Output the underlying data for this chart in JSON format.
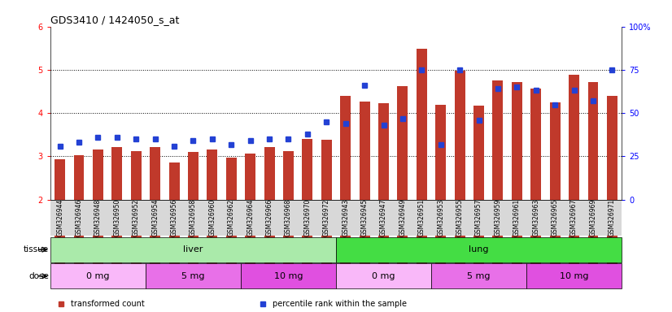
{
  "title": "GDS3410 / 1424050_s_at",
  "samples": [
    "GSM326944",
    "GSM326946",
    "GSM326948",
    "GSM326950",
    "GSM326952",
    "GSM326954",
    "GSM326956",
    "GSM326958",
    "GSM326960",
    "GSM326962",
    "GSM326964",
    "GSM326966",
    "GSM326968",
    "GSM326970",
    "GSM326972",
    "GSM326943",
    "GSM326945",
    "GSM326947",
    "GSM326949",
    "GSM326951",
    "GSM326953",
    "GSM326955",
    "GSM326957",
    "GSM326959",
    "GSM326961",
    "GSM326963",
    "GSM326965",
    "GSM326967",
    "GSM326969",
    "GSM326971"
  ],
  "transformed_count": [
    2.93,
    3.02,
    3.16,
    3.22,
    3.12,
    3.22,
    2.85,
    3.1,
    3.15,
    2.97,
    3.07,
    3.22,
    3.13,
    3.4,
    3.38,
    4.4,
    4.27,
    4.22,
    4.62,
    5.48,
    4.2,
    4.98,
    4.18,
    4.75,
    4.72,
    4.57,
    4.25,
    4.88,
    4.72,
    4.4
  ],
  "percentile_rank": [
    31,
    33,
    36,
    36,
    35,
    35,
    31,
    34,
    35,
    32,
    34,
    35,
    35,
    38,
    45,
    44,
    66,
    43,
    47,
    75,
    32,
    75,
    46,
    64,
    65,
    63,
    55,
    63,
    57,
    75
  ],
  "bar_color": "#c0392b",
  "dot_color": "#2341d4",
  "ylim_left": [
    2,
    6
  ],
  "ylim_right": [
    0,
    100
  ],
  "yticks_left": [
    2,
    3,
    4,
    5,
    6
  ],
  "yticks_right": [
    0,
    25,
    50,
    75,
    100
  ],
  "ytick_right_labels": [
    "0",
    "25",
    "50",
    "75",
    "100%"
  ],
  "grid_lines": [
    3,
    4,
    5
  ],
  "tissue_groups": [
    {
      "label": "liver",
      "start": 0,
      "end": 15,
      "color": "#aaeaaa"
    },
    {
      "label": "lung",
      "start": 15,
      "end": 30,
      "color": "#44dd44"
    }
  ],
  "dose_groups": [
    {
      "label": "0 mg",
      "start": 0,
      "end": 5,
      "color": "#f9b8f9"
    },
    {
      "label": "5 mg",
      "start": 5,
      "end": 10,
      "color": "#e870e8"
    },
    {
      "label": "10 mg",
      "start": 10,
      "end": 15,
      "color": "#e050e0"
    },
    {
      "label": "0 mg",
      "start": 15,
      "end": 20,
      "color": "#f9b8f9"
    },
    {
      "label": "5 mg",
      "start": 20,
      "end": 25,
      "color": "#e870e8"
    },
    {
      "label": "10 mg",
      "start": 25,
      "end": 30,
      "color": "#e050e0"
    }
  ],
  "legend_items": [
    {
      "label": "transformed count",
      "color": "#c0392b"
    },
    {
      "label": "percentile rank within the sample",
      "color": "#2341d4"
    }
  ],
  "tissue_label": "tissue",
  "dose_label": "dose",
  "ticklabel_bg": "#d8d8d8",
  "bar_width": 0.55
}
